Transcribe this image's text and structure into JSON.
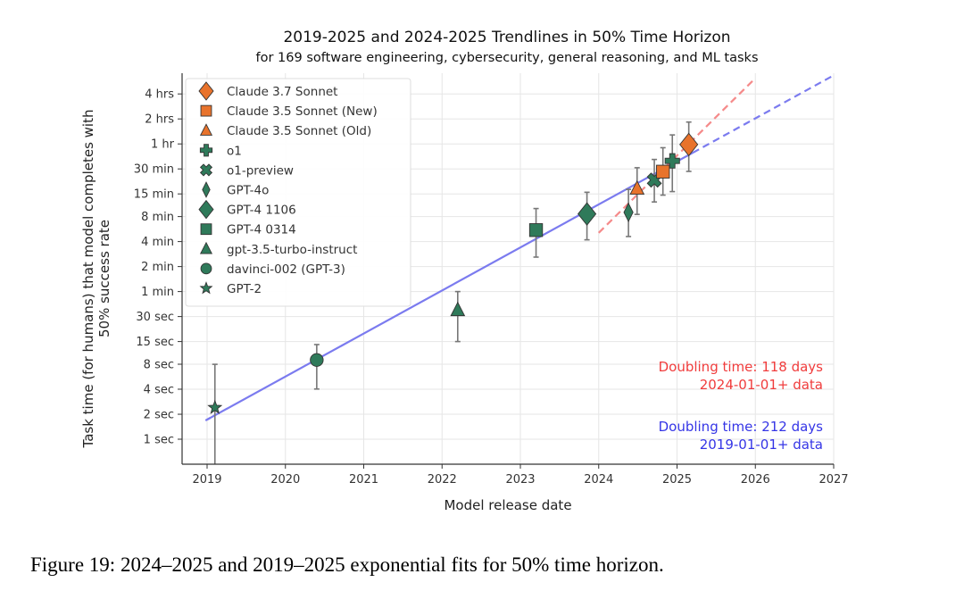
{
  "chart_data": {
    "type": "scatter",
    "title": "2019-2025 and 2024-2025 Trendlines in 50% Time Horizon",
    "subtitle": "for 169 software engineering, cybersecurity, general reasoning, and ML tasks",
    "xlabel": "Model release date",
    "ylabel": [
      "Task time (for humans) that model completes with",
      "50% success rate"
    ],
    "y_scale": "log2",
    "y_units": "minutes",
    "xlim": [
      2018.85,
      2027
    ],
    "ylim_minutes": [
      0.0083,
      420
    ],
    "grid": true,
    "legend_position": "top-left",
    "x_ticks": [
      {
        "value": 2019,
        "label": "2019"
      },
      {
        "value": 2020,
        "label": "2020"
      },
      {
        "value": 2021,
        "label": "2021"
      },
      {
        "value": 2022,
        "label": "2022"
      },
      {
        "value": 2023,
        "label": "2023"
      },
      {
        "value": 2024,
        "label": "2024"
      },
      {
        "value": 2025,
        "label": "2025"
      },
      {
        "value": 2026,
        "label": "2026"
      },
      {
        "value": 2027,
        "label": "2027"
      }
    ],
    "y_ticks": [
      {
        "value": 240,
        "label": "4 hrs"
      },
      {
        "value": 120,
        "label": "2 hrs"
      },
      {
        "value": 60,
        "label": "1 hr"
      },
      {
        "value": 30,
        "label": "30 min"
      },
      {
        "value": 15,
        "label": "15 min"
      },
      {
        "value": 8,
        "label": "8 min"
      },
      {
        "value": 4,
        "label": "4 min"
      },
      {
        "value": 2,
        "label": "2 min"
      },
      {
        "value": 1,
        "label": "1 min"
      },
      {
        "value": 0.5,
        "label": "30 sec"
      },
      {
        "value": 0.25,
        "label": "15 sec"
      },
      {
        "value": 0.1333,
        "label": "8 sec"
      },
      {
        "value": 0.0667,
        "label": "4 sec"
      },
      {
        "value": 0.0333,
        "label": "2 sec"
      },
      {
        "value": 0.01667,
        "label": "1 sec"
      }
    ],
    "series": [
      {
        "name": "Claude 3.7 Sonnet",
        "marker": "diamond",
        "color": "#e8732c",
        "x": 2025.15,
        "y": 59,
        "err": [
          28,
          110
        ]
      },
      {
        "name": "Claude 3.5 Sonnet (New)",
        "marker": "square",
        "color": "#e8732c",
        "x": 2024.82,
        "y": 27.8,
        "err": [
          14.5,
          54
        ]
      },
      {
        "name": "Claude 3.5 Sonnet (Old)",
        "marker": "triangle",
        "color": "#e8732c",
        "x": 2024.49,
        "y": 17.4,
        "err": [
          8.5,
          31
        ]
      },
      {
        "name": "o1",
        "marker": "plus",
        "color": "#2f7a5a",
        "x": 2024.94,
        "y": 37.5,
        "err": [
          16,
          77
        ]
      },
      {
        "name": "o1-preview",
        "marker": "x",
        "color": "#2f7a5a",
        "x": 2024.71,
        "y": 22,
        "err": [
          12,
          39
        ]
      },
      {
        "name": "GPT-4o",
        "marker": "thin_diamond",
        "color": "#2f7a5a",
        "x": 2024.38,
        "y": 9,
        "err": [
          4.6,
          17
        ]
      },
      {
        "name": "GPT-4 1106",
        "marker": "diamond",
        "color": "#2f7a5a",
        "x": 2023.85,
        "y": 8.6,
        "err": [
          4.2,
          15.7
        ]
      },
      {
        "name": "GPT-4 0314",
        "marker": "square",
        "color": "#2f7a5a",
        "x": 2023.2,
        "y": 5.5,
        "err": [
          2.6,
          10
        ]
      },
      {
        "name": "gpt-3.5-turbo-instruct",
        "marker": "triangle",
        "color": "#2f7a5a",
        "x": 2022.2,
        "y": 0.6,
        "err": [
          0.25,
          1
        ]
      },
      {
        "name": "davinci-002 (GPT-3)",
        "marker": "circle",
        "color": "#2f7a5a",
        "x": 2020.4,
        "y": 0.15,
        "err": [
          0.067,
          0.23
        ]
      },
      {
        "name": "GPT-2",
        "marker": "star",
        "color": "#2f7a5a",
        "x": 2019.1,
        "y": 0.04,
        "err": [
          0.008,
          0.133
        ]
      }
    ],
    "trendlines": [
      {
        "name": "2019-2025 fit",
        "color": "#7b7bef",
        "x_solid": [
          2019.0,
          2025.2
        ],
        "x_dashed_end": 2027.0,
        "y_at_2019": 0.0287,
        "doubling_days": 212
      },
      {
        "name": "2024-2025 fit",
        "color": "#f58a8a",
        "x_dashed": [
          2024.0,
          2026.0
        ],
        "y_at_2024": 5.1,
        "doubling_days": 118
      }
    ],
    "annotations": [
      {
        "lines": [
          "Doubling time: 118 days",
          "2024-01-01+ data"
        ],
        "color": "#f03c3c"
      },
      {
        "lines": [
          "Doubling time: 212 days",
          "2019-01-01+ data"
        ],
        "color": "#3535e6"
      }
    ]
  },
  "caption": "Figure 19: 2024–2025 and 2019–2025 exponential fits for 50% time horizon."
}
